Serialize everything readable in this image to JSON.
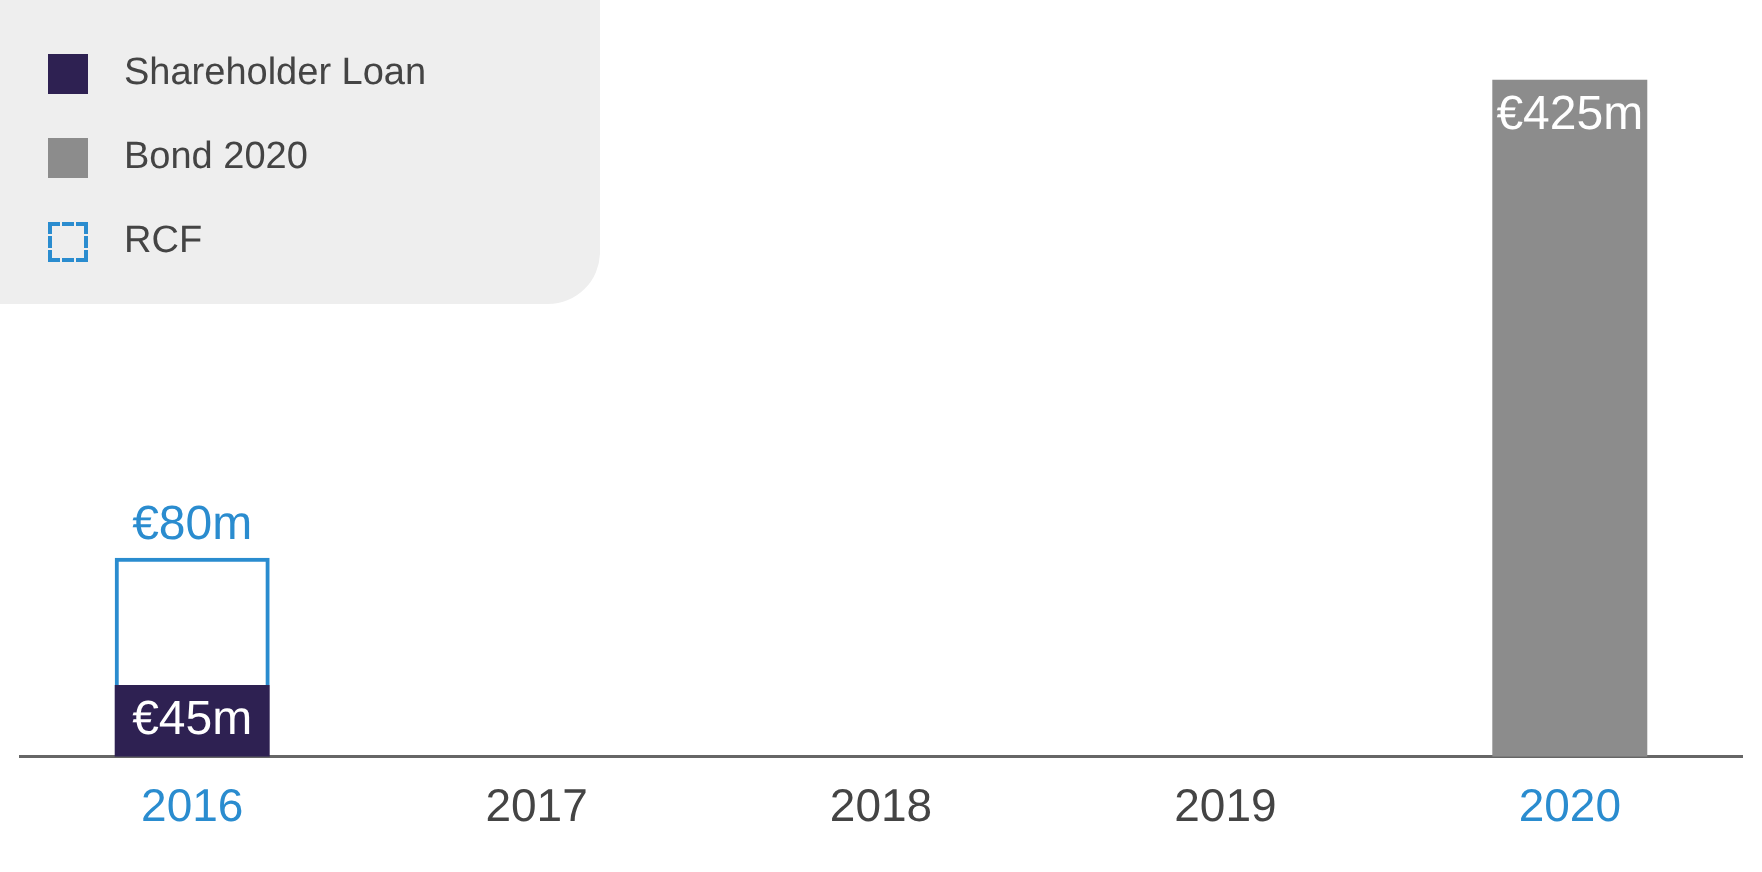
{
  "chart_data": {
    "type": "bar",
    "stacked": true,
    "categories": [
      "2016",
      "2017",
      "2018",
      "2019",
      "2020"
    ],
    "series": [
      {
        "name": "Shareholder Loan",
        "color": "#2e2152",
        "values": [
          45,
          null,
          null,
          null,
          null
        ],
        "value_labels": [
          "€45m",
          null,
          null,
          null,
          null
        ]
      },
      {
        "name": "Bond 2020",
        "color": "#8c8c8c",
        "values": [
          null,
          null,
          null,
          null,
          425
        ],
        "value_labels": [
          null,
          null,
          null,
          null,
          "€425m"
        ]
      },
      {
        "name": "RCF",
        "color": "#2a8ccf",
        "line_style": "dashed",
        "values": [
          80,
          null,
          null,
          null,
          null
        ],
        "value_labels": [
          "€80m",
          null,
          null,
          null,
          null
        ]
      }
    ],
    "legend": "top left",
    "grid": false,
    "tick_labels": "x"
  }
}
